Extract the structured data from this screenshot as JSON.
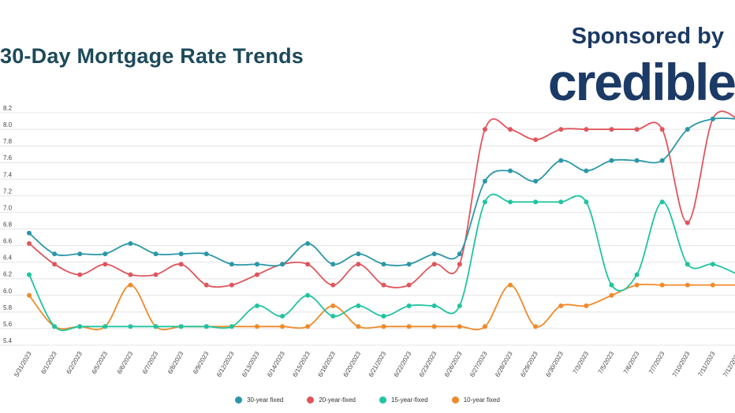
{
  "header": {
    "title": "30-Day Mortgage Rate Trends",
    "sponsor_label": "Sponsored by",
    "brand_name": "credible"
  },
  "chart_data": {
    "type": "line",
    "title": "30-Day Mortgage Rate Trends",
    "xlabel": "",
    "ylabel": "",
    "ylim": [
      5.4,
      8.2
    ],
    "yticks": [
      5.4,
      5.6,
      5.8,
      6.0,
      6.2,
      6.4,
      6.6,
      6.8,
      7.0,
      7.2,
      7.4,
      7.6,
      7.8,
      8.0,
      8.2
    ],
    "ytick_labels": [
      "5.4",
      "5.6",
      "5.8",
      "6.0",
      "6.2",
      "6.4",
      "6.6",
      "6.8",
      "7.0",
      "7.2",
      "7.4",
      "7.6",
      "7.8",
      "8.0",
      "8.2"
    ],
    "grid": true,
    "legend_position": "bottom-center",
    "categories": [
      "5/31/2023",
      "6/1/2023",
      "6/2/2023",
      "6/5/2023",
      "6/6/2023",
      "6/7/2023",
      "6/8/2023",
      "6/9/2023",
      "6/12/2023",
      "6/13/2023",
      "6/14/2023",
      "6/15/2023",
      "6/16/2023",
      "6/20/2023",
      "6/21/2023",
      "6/22/2023",
      "6/23/2023",
      "6/26/2023",
      "6/27/2023",
      "6/28/2023",
      "6/29/2023",
      "6/30/2023",
      "7/3/2023",
      "7/5/2023",
      "7/6/2023",
      "7/7/2023",
      "7/10/2023",
      "7/11/2023",
      "7/12/2023"
    ],
    "series": [
      {
        "name": "30-year fixed",
        "color": "#2a97a8",
        "values": [
          6.75,
          6.5,
          6.5,
          6.5,
          6.625,
          6.5,
          6.5,
          6.5,
          6.375,
          6.375,
          6.375,
          6.625,
          6.375,
          6.5,
          6.375,
          6.375,
          6.5,
          6.5,
          7.375,
          7.5,
          7.375,
          7.625,
          7.5,
          7.625,
          7.625,
          7.625,
          8.0,
          8.125,
          8.125
        ]
      },
      {
        "name": "20-year-fixed",
        "color": "#e0555c",
        "values": [
          6.625,
          6.375,
          6.25,
          6.375,
          6.25,
          6.25,
          6.375,
          6.125,
          6.125,
          6.25,
          6.375,
          6.375,
          6.125,
          6.375,
          6.125,
          6.125,
          6.375,
          6.375,
          8.0,
          8.0,
          7.875,
          8.0,
          8.0,
          8.0,
          8.0,
          8.0,
          6.875,
          8.125,
          8.125
        ]
      },
      {
        "name": "15-year-fixed",
        "color": "#20c4a0",
        "values": [
          6.25,
          5.625,
          5.625,
          5.625,
          5.625,
          5.625,
          5.625,
          5.625,
          5.625,
          5.875,
          5.75,
          6.0,
          5.75,
          5.875,
          5.75,
          5.875,
          5.875,
          5.875,
          7.125,
          7.125,
          7.125,
          7.125,
          7.125,
          6.125,
          6.25,
          7.125,
          6.375,
          6.375,
          6.25
        ]
      },
      {
        "name": "10-year fixed",
        "color": "#f08a2a",
        "values": [
          6.0,
          5.625,
          5.625,
          5.625,
          6.125,
          5.625,
          5.625,
          5.625,
          5.625,
          5.625,
          5.625,
          5.625,
          5.875,
          5.625,
          5.625,
          5.625,
          5.625,
          5.625,
          5.625,
          6.125,
          5.625,
          5.875,
          5.875,
          6.0,
          6.125,
          6.125,
          6.125,
          6.125,
          6.125
        ]
      }
    ]
  }
}
